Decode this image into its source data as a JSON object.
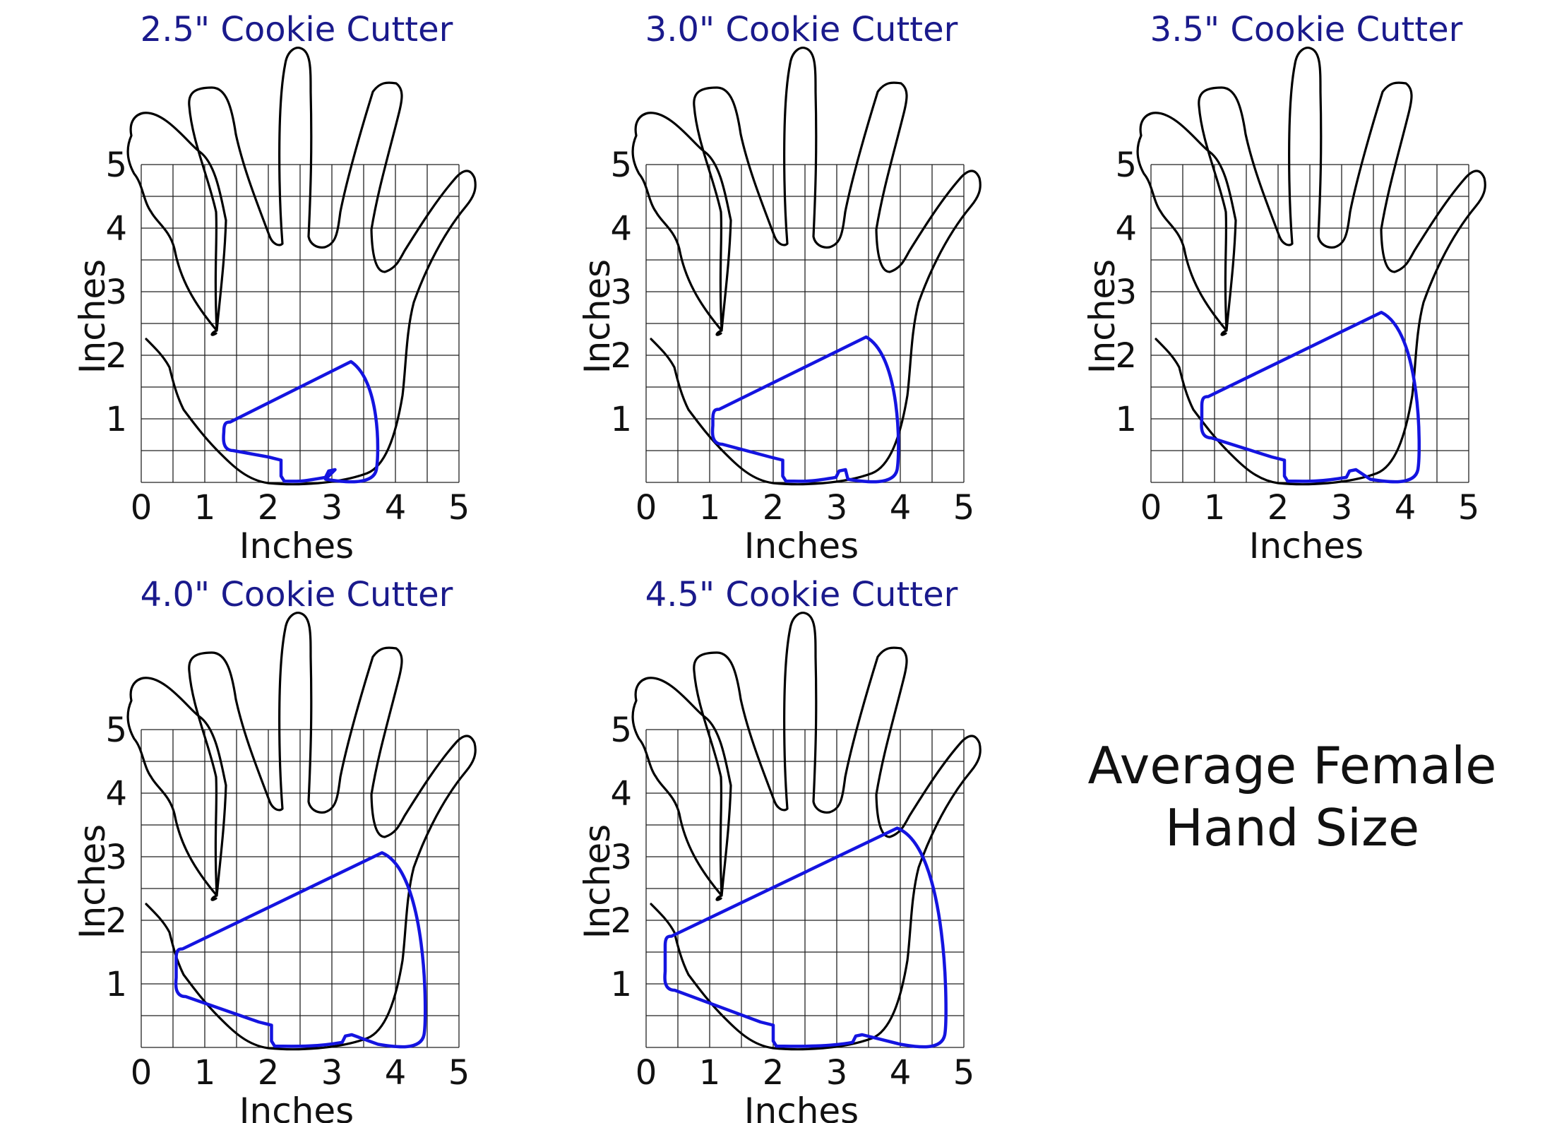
{
  "axis": {
    "xlabel": "Inches",
    "ylabel": "Inches",
    "xticks": [
      "0",
      "1",
      "2",
      "3",
      "4",
      "5"
    ],
    "yticks": [
      "1",
      "2",
      "3",
      "4",
      "5"
    ]
  },
  "panels": [
    {
      "title": "2.5\" Cookie Cutter",
      "cutter_size_in": 2.5
    },
    {
      "title": "3.0\" Cookie Cutter",
      "cutter_size_in": 3.0
    },
    {
      "title": "3.5\" Cookie Cutter",
      "cutter_size_in": 3.5
    },
    {
      "title": "4.0\" Cookie Cutter",
      "cutter_size_in": 4.0
    },
    {
      "title": "4.5\" Cookie Cutter",
      "cutter_size_in": 4.5
    }
  ],
  "caption": {
    "line1": "Average Female",
    "line2": "Hand Size"
  },
  "colors": {
    "title": "#1a1a8c",
    "cutter": "#1414e0",
    "hand": "#000000",
    "grid": "#222222"
  }
}
